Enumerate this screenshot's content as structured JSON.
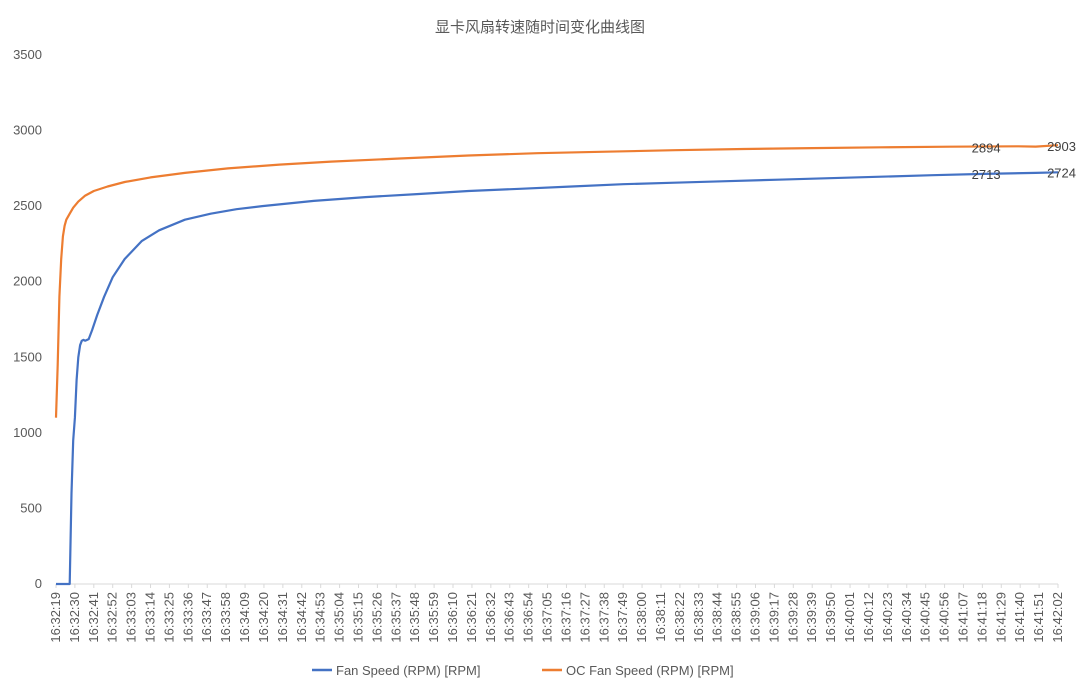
{
  "chart_data": {
    "type": "line",
    "title": "显卡风扇转速随时间变化曲线图",
    "xlabel": "",
    "ylabel": "",
    "ylim": [
      0,
      3500
    ],
    "yticks": [
      0,
      500,
      1000,
      1500,
      2000,
      2500,
      3000,
      3500
    ],
    "grid": false,
    "legend_position": "bottom",
    "x_tick_labels": [
      "16:32:19",
      "16:32:30",
      "16:32:41",
      "16:32:52",
      "16:33:03",
      "16:33:14",
      "16:33:25",
      "16:33:36",
      "16:33:47",
      "16:33:58",
      "16:34:09",
      "16:34:20",
      "16:34:31",
      "16:34:42",
      "16:34:53",
      "16:35:04",
      "16:35:15",
      "16:35:26",
      "16:35:37",
      "16:35:48",
      "16:35:59",
      "16:36:10",
      "16:36:21",
      "16:36:32",
      "16:36:43",
      "16:36:54",
      "16:37:05",
      "16:37:16",
      "16:37:27",
      "16:37:38",
      "16:37:49",
      "16:38:00",
      "16:38:11",
      "16:38:22",
      "16:38:33",
      "16:38:44",
      "16:38:55",
      "16:39:06",
      "16:39:17",
      "16:39:28",
      "16:39:39",
      "16:39:50",
      "16:40:01",
      "16:40:12",
      "16:40:23",
      "16:40:34",
      "16:40:45",
      "16:40:56",
      "16:41:07",
      "16:41:18",
      "16:41:29",
      "16:41:40",
      "16:41:51",
      "16:42:02"
    ],
    "x_seconds": [
      0,
      4,
      8,
      11,
      12,
      14,
      16,
      18,
      20,
      22,
      25,
      28,
      30,
      33,
      36,
      40,
      45,
      50,
      55,
      60,
      70,
      80,
      90,
      100,
      120,
      140,
      160,
      180,
      210,
      240,
      270,
      300,
      330,
      360,
      390,
      420,
      450,
      480,
      510,
      540,
      570,
      600,
      583
    ],
    "series": [
      {
        "name": "Fan Speed (RPM) [RPM]",
        "color": "#4472C4",
        "x": [
          0,
          8,
          9,
          10,
          11,
          12,
          13,
          14,
          15,
          16,
          17,
          19,
          21,
          24,
          28,
          33,
          40,
          50,
          60,
          75,
          90,
          105,
          120,
          150,
          180,
          210,
          240,
          270,
          300,
          330,
          360,
          390,
          420,
          450,
          480,
          510,
          540,
          570,
          583
        ],
        "y": [
          0,
          0,
          600,
          950,
          1100,
          1350,
          1500,
          1580,
          1610,
          1615,
          1610,
          1620,
          1680,
          1780,
          1900,
          2030,
          2150,
          2270,
          2340,
          2410,
          2450,
          2480,
          2500,
          2535,
          2560,
          2580,
          2600,
          2615,
          2630,
          2645,
          2655,
          2665,
          2675,
          2685,
          2695,
          2705,
          2713,
          2720,
          2724
        ]
      },
      {
        "name": "OC  Fan Speed (RPM) [RPM]",
        "color": "#ED7D31",
        "x": [
          0,
          1,
          2,
          3,
          4,
          5,
          6,
          8,
          10,
          13,
          17,
          22,
          30,
          40,
          55,
          75,
          100,
          130,
          160,
          200,
          240,
          280,
          320,
          360,
          400,
          440,
          480,
          520,
          560,
          570,
          583
        ],
        "y": [
          1100,
          1450,
          1900,
          2150,
          2300,
          2370,
          2410,
          2450,
          2490,
          2530,
          2570,
          2600,
          2630,
          2660,
          2690,
          2720,
          2750,
          2775,
          2795,
          2815,
          2835,
          2850,
          2860,
          2870,
          2878,
          2884,
          2889,
          2893,
          2896,
          2894,
          2903
        ]
      }
    ],
    "annotations": [
      {
        "series": "OC  Fan Speed (RPM) [RPM]",
        "x": 540,
        "value": "2894"
      },
      {
        "series": "OC  Fan Speed (RPM) [RPM]",
        "x": 583,
        "value": "2903"
      },
      {
        "series": "Fan Speed (RPM) [RPM]",
        "x": 540,
        "value": "2713"
      },
      {
        "series": "Fan Speed (RPM) [RPM]",
        "x": 583,
        "value": "2724"
      }
    ],
    "x_range_seconds": [
      0,
      583
    ]
  }
}
